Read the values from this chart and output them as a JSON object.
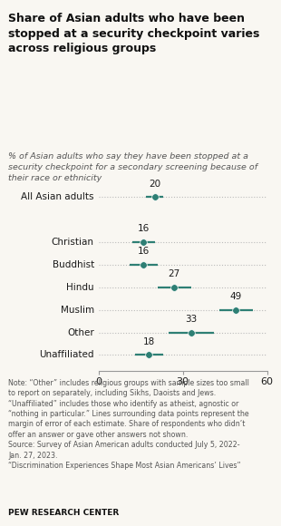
{
  "title": "Share of Asian adults who have been\nstopped at a security checkpoint varies\nacross religious groups",
  "subtitle": "% of Asian adults who say they have been stopped at a\nsecurity checkpoint for a secondary screening because of\ntheir race or ethnicity",
  "categories": [
    "All Asian adults",
    "Christian",
    "Buddhist",
    "Hindu",
    "Muslim",
    "Other",
    "Unaffiliated"
  ],
  "values": [
    20,
    16,
    16,
    27,
    49,
    33,
    18
  ],
  "error_margins": [
    3,
    4,
    5,
    6,
    6,
    8,
    5
  ],
  "dot_color": "#2e7f74",
  "line_color": "#2e7f74",
  "dotted_line_color": "#bbbbbb",
  "background_color": "#f9f7f2",
  "text_color": "#1a1a1a",
  "note_color": "#555555",
  "xlim": [
    0,
    60
  ],
  "xticks": [
    0,
    30,
    60
  ],
  "note_text": "Note: “Other” includes religious groups with sample sizes too small\nto report on separately, including Sikhs, Daoists and Jews.\n“Unaffiliated” includes those who identify as atheist, agnostic or\n“nothing in particular.” Lines surrounding data points represent the\nmargin of error of each estimate. Share of respondents who didn’t\noffer an answer or gave other answers not shown.\nSource: Survey of Asian American adults conducted July 5, 2022-\nJan. 27, 2023.\n“Discrimination Experiences Shape Most Asian Americans’ Lives”",
  "source_bold": "PEW RESEARCH CENTER"
}
